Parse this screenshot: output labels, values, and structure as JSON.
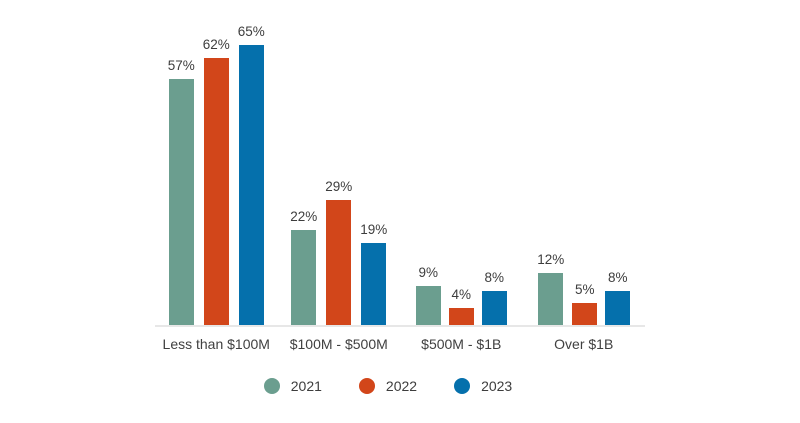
{
  "colors": {
    "series_2021": "#6B9E8F",
    "series_2022": "#D2461A",
    "series_2023": "#0570AC",
    "axis_line": "#E7E7E7",
    "text": "#3D3D3D",
    "background": "#FFFFFF"
  },
  "chart_data": {
    "type": "bar",
    "title": "",
    "xlabel": "",
    "ylabel": "",
    "categories": [
      "Less than $100M",
      "$100M - $500M",
      "$500M - $1B",
      "Over $1B"
    ],
    "series": [
      {
        "name": "2021",
        "color": "#6B9E8F",
        "values": [
          57,
          22,
          9,
          12
        ]
      },
      {
        "name": "2022",
        "color": "#D2461A",
        "values": [
          62,
          29,
          4,
          5
        ]
      },
      {
        "name": "2023",
        "color": "#0570AC",
        "values": [
          65,
          19,
          8,
          8
        ]
      }
    ],
    "value_suffix": "%",
    "value_labels": [
      [
        "57%",
        "22%",
        "9%",
        "12%"
      ],
      [
        "62%",
        "29%",
        "4%",
        "5%"
      ],
      [
        "65%",
        "19%",
        "8%",
        "8%"
      ]
    ],
    "ylim": [
      0,
      65
    ],
    "grid": false,
    "y_axis_visible": false,
    "legend_position": "bottom",
    "legend_entries": [
      "2021",
      "2022",
      "2023"
    ]
  }
}
